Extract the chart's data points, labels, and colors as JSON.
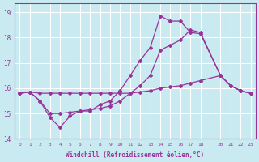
{
  "xlabel": "Windchill (Refroidissement éolien,°C)",
  "bg_color": "#c8eaf0",
  "grid_color": "#ffffff",
  "line_color": "#993399",
  "xlim": [
    -0.5,
    23.5
  ],
  "ylim": [
    14.0,
    19.35
  ],
  "xticks": [
    0,
    1,
    2,
    3,
    4,
    5,
    6,
    7,
    8,
    9,
    10,
    11,
    12,
    13,
    14,
    15,
    16,
    17,
    18,
    20,
    21,
    22,
    23
  ],
  "yticks": [
    14,
    15,
    16,
    17,
    18,
    19
  ],
  "line1_x": [
    0,
    1,
    2,
    3,
    4,
    5,
    6,
    7,
    8,
    9,
    10,
    11,
    12,
    13,
    14,
    15,
    16,
    17,
    18,
    20,
    21,
    22,
    23
  ],
  "line1_y": [
    15.8,
    15.85,
    15.8,
    15.8,
    15.8,
    15.8,
    15.8,
    15.8,
    15.8,
    15.8,
    15.8,
    15.8,
    15.85,
    15.9,
    16.0,
    16.05,
    16.1,
    16.2,
    16.3,
    16.5,
    16.1,
    15.9,
    15.8
  ],
  "line2_x": [
    0,
    1,
    2,
    3,
    4,
    5,
    6,
    7,
    8,
    9,
    10,
    11,
    12,
    13,
    14,
    15,
    16,
    17,
    18,
    20,
    21,
    22,
    23
  ],
  "line2_y": [
    15.8,
    15.85,
    15.5,
    14.85,
    14.45,
    14.9,
    15.1,
    15.1,
    15.35,
    15.5,
    15.9,
    16.5,
    17.1,
    17.6,
    18.85,
    18.65,
    18.65,
    18.2,
    18.15,
    16.5,
    16.1,
    15.9,
    15.8
  ],
  "line3_x": [
    0,
    1,
    2,
    3,
    4,
    5,
    6,
    7,
    8,
    9,
    10,
    11,
    12,
    13,
    14,
    15,
    16,
    17,
    18,
    20,
    21,
    22,
    23
  ],
  "line3_y": [
    15.8,
    15.85,
    15.5,
    15.0,
    15.0,
    15.05,
    15.1,
    15.15,
    15.2,
    15.3,
    15.5,
    15.8,
    16.1,
    16.5,
    17.5,
    17.7,
    17.9,
    18.3,
    18.2,
    16.5,
    16.1,
    15.9,
    15.8
  ]
}
